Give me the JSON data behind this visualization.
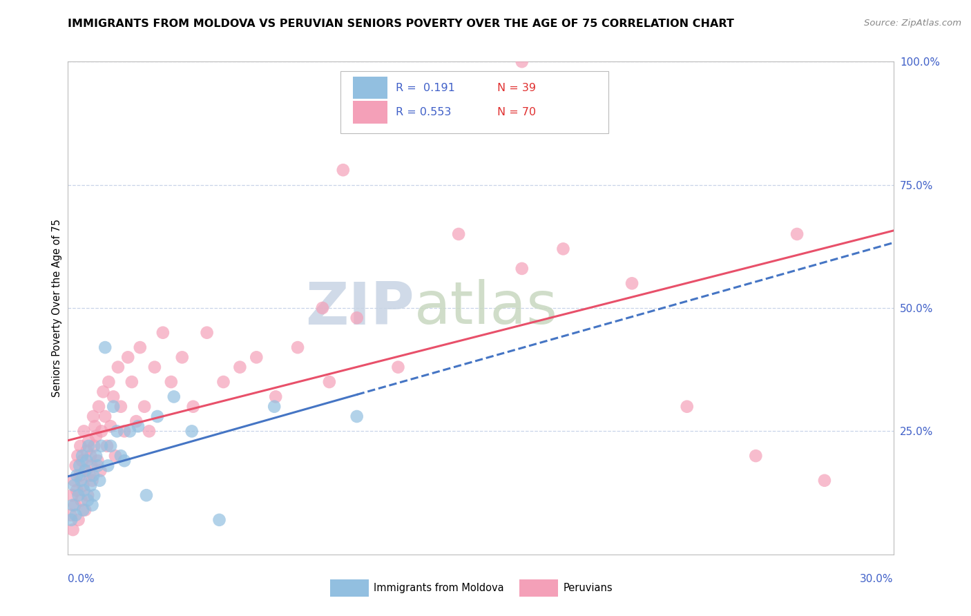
{
  "title": "IMMIGRANTS FROM MOLDOVA VS PERUVIAN SENIORS POVERTY OVER THE AGE OF 75 CORRELATION CHART",
  "source": "Source: ZipAtlas.com",
  "ylabel": "Seniors Poverty Over the Age of 75",
  "xlim": [
    0.0,
    30.0
  ],
  "ylim": [
    0.0,
    100.0
  ],
  "series1_name": "Immigrants from Moldova",
  "series2_name": "Peruvians",
  "series1_color": "#92bfe0",
  "series2_color": "#f4a0b8",
  "series1_line_color": "#4575c4",
  "series2_line_color": "#e8506a",
  "axis_color": "#4060c8",
  "grid_color": "#c8d4e8",
  "R1_text": "R =  0.191",
  "N1_text": "N = 39",
  "R2_text": "R = 0.553",
  "N2_text": "N = 70",
  "watermark_zip": "ZIP",
  "watermark_atlas": "atlas",
  "title_fontsize": 11.5,
  "source_fontsize": 9.5,
  "series1_x": [
    0.12,
    0.18,
    0.22,
    0.28,
    0.32,
    0.38,
    0.42,
    0.48,
    0.52,
    0.55,
    0.58,
    0.62,
    0.68,
    0.72,
    0.75,
    0.82,
    0.88,
    0.92,
    0.95,
    1.02,
    1.08,
    1.15,
    1.22,
    1.35,
    1.45,
    1.55,
    1.65,
    1.78,
    1.92,
    2.05,
    2.25,
    2.55,
    2.85,
    3.25,
    3.85,
    4.5,
    5.5,
    7.5,
    10.5
  ],
  "series1_y": [
    7,
    10,
    14,
    8,
    16,
    12,
    18,
    15,
    20,
    9,
    13,
    17,
    19,
    11,
    22,
    14,
    10,
    16,
    12,
    20,
    18,
    15,
    22,
    42,
    18,
    22,
    30,
    25,
    20,
    19,
    25,
    26,
    12,
    28,
    32,
    25,
    7,
    30,
    28
  ],
  "series2_x": [
    0.1,
    0.15,
    0.18,
    0.22,
    0.25,
    0.28,
    0.32,
    0.35,
    0.38,
    0.42,
    0.45,
    0.48,
    0.52,
    0.55,
    0.58,
    0.62,
    0.65,
    0.68,
    0.72,
    0.75,
    0.78,
    0.82,
    0.85,
    0.88,
    0.92,
    0.95,
    0.98,
    1.02,
    1.08,
    1.12,
    1.18,
    1.22,
    1.28,
    1.35,
    1.42,
    1.48,
    1.55,
    1.65,
    1.72,
    1.82,
    1.92,
    2.05,
    2.18,
    2.32,
    2.48,
    2.62,
    2.78,
    2.95,
    3.15,
    3.45,
    3.75,
    4.15,
    4.55,
    5.05,
    5.65,
    6.25,
    6.85,
    7.55,
    8.35,
    9.25,
    10.5,
    12.0,
    14.2,
    16.5,
    18.0,
    20.5,
    22.5,
    25.0,
    27.5,
    9.5
  ],
  "series2_y": [
    8,
    12,
    5,
    15,
    10,
    18,
    13,
    20,
    7,
    16,
    22,
    11,
    19,
    14,
    25,
    9,
    17,
    21,
    12,
    23,
    16,
    20,
    18,
    15,
    28,
    22,
    26,
    24,
    19,
    30,
    17,
    25,
    33,
    28,
    22,
    35,
    26,
    32,
    20,
    38,
    30,
    25,
    40,
    35,
    27,
    42,
    30,
    25,
    38,
    45,
    35,
    40,
    30,
    45,
    35,
    38,
    40,
    32,
    42,
    50,
    48,
    38,
    65,
    58,
    62,
    55,
    30,
    20,
    15,
    35
  ],
  "peru_outlier_x": 16.5,
  "peru_outlier_y": 100.0,
  "peru_outlier2_x": 26.5,
  "peru_outlier2_y": 65.0,
  "peru_outlier3_x": 10.0,
  "peru_outlier3_y": 78.0
}
